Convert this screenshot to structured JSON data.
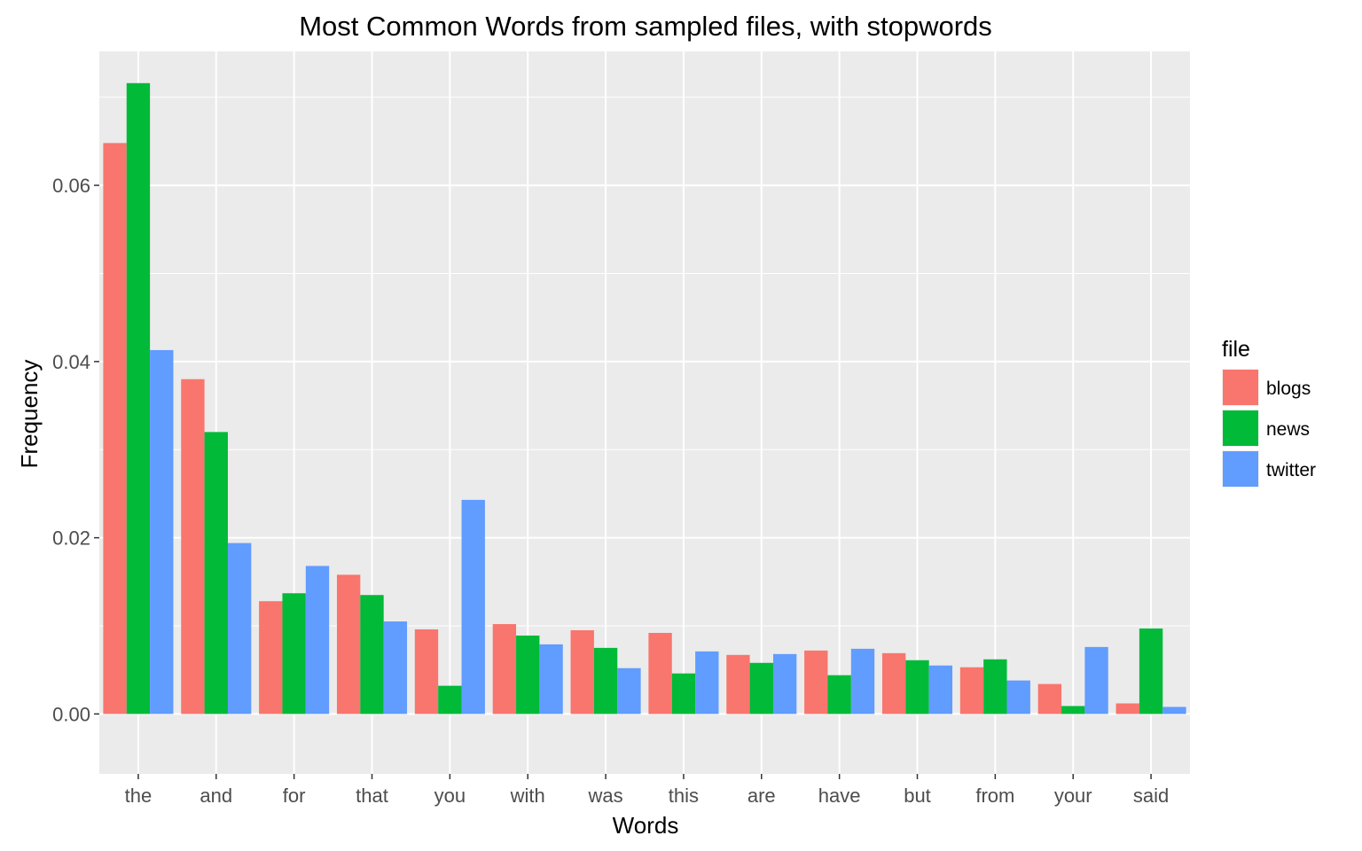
{
  "chart_data": {
    "type": "bar",
    "title": "Most Common Words from sampled files, with stopwords",
    "xlabel": "Words",
    "ylabel": "Frequency",
    "ylim": [
      -0.0068,
      0.0752
    ],
    "yticks": [
      "0.00",
      "0.02",
      "0.04",
      "0.06"
    ],
    "ytick_values": [
      0,
      0.02,
      0.04,
      0.06
    ],
    "grid": true,
    "legend": {
      "title": "file",
      "position": "right"
    },
    "categories": [
      "the",
      "and",
      "for",
      "that",
      "you",
      "with",
      "was",
      "this",
      "are",
      "have",
      "but",
      "from",
      "your",
      "said"
    ],
    "series": [
      {
        "name": "blogs",
        "color": "#F8766D",
        "values": [
          0.0648,
          0.038,
          0.0128,
          0.0158,
          0.0096,
          0.0102,
          0.0095,
          0.0092,
          0.0067,
          0.0072,
          0.0069,
          0.0053,
          0.0034,
          0.0012
        ]
      },
      {
        "name": "news",
        "color": "#00BA38",
        "values": [
          0.0716,
          0.032,
          0.0137,
          0.0135,
          0.0032,
          0.0089,
          0.0075,
          0.0046,
          0.0058,
          0.0044,
          0.0061,
          0.0062,
          0.0009,
          0.0097
        ]
      },
      {
        "name": "twitter",
        "color": "#619CFF",
        "values": [
          0.0413,
          0.0194,
          0.0168,
          0.0105,
          0.0243,
          0.0079,
          0.0052,
          0.0071,
          0.0068,
          0.0074,
          0.0055,
          0.0038,
          0.0076,
          0.0008
        ]
      }
    ],
    "panel_color": "#EBEBEB",
    "grid_color": "#FFFFFF"
  }
}
